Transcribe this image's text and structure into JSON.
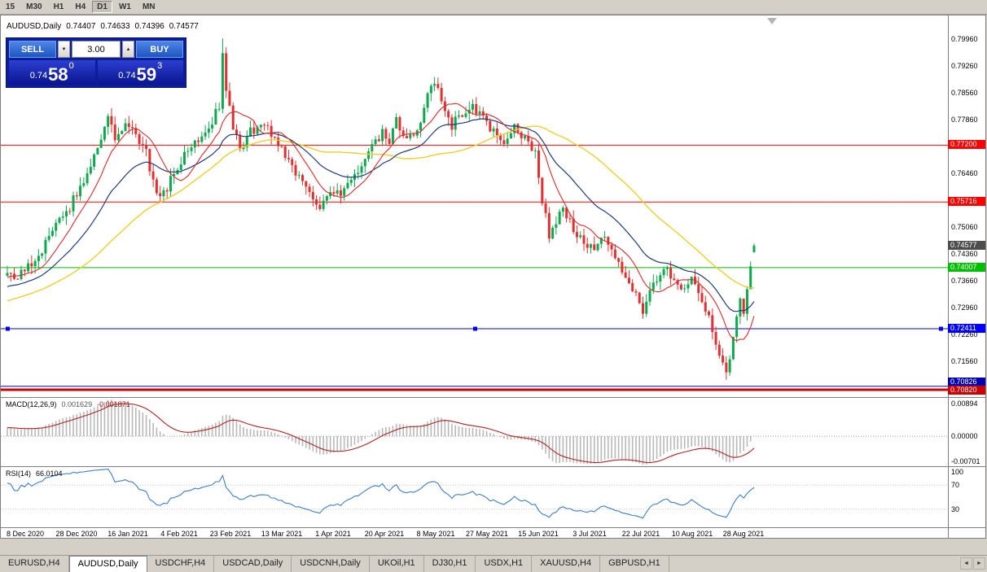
{
  "toolbar": {
    "timeframes": [
      "15",
      "M30",
      "H1",
      "H4",
      "D1",
      "W1",
      "MN"
    ],
    "active_timeframe": "D1"
  },
  "chart": {
    "header": {
      "symbol": "AUDUSD,Daily",
      "open": "0.74407",
      "high": "0.74633",
      "low": "0.74396",
      "close": "0.74577"
    },
    "trade_panel": {
      "sell_label": "SELL",
      "buy_label": "BUY",
      "volume": "3.00",
      "down_icon": "▼",
      "up_icon": "▲",
      "sell_price": {
        "big": "0.74",
        "pips": "58",
        "sup": "0"
      },
      "buy_price": {
        "big": "0.74",
        "pips": "59",
        "sup": "3"
      }
    }
  },
  "chart_data": {
    "type": "candlestick",
    "symbol": "AUDUSD",
    "timeframe": "Daily",
    "last_candle": {
      "open": 0.74407,
      "high": 0.74633,
      "low": 0.74396,
      "close": 0.74577
    },
    "ylim": [
      0.7063,
      0.8058
    ],
    "candle_count": 216,
    "price_axis_labels": [
      "0.79960",
      "0.79260",
      "0.78560",
      "0.77860",
      "0.77160",
      "0.76460",
      "0.75760",
      "0.75060",
      "0.74360",
      "0.73660",
      "0.72960",
      "0.72260",
      "0.71560",
      "0.70860"
    ],
    "current_price": {
      "value": 0.74577,
      "label": "0.74577",
      "color": "#4d4d4d"
    },
    "hlines": [
      {
        "value": 0.772,
        "label": "0.77200",
        "color": "#FF0000",
        "width": 1,
        "dy": 0,
        "badge_dy": 0
      },
      {
        "value": 0.75716,
        "label": "0.75716",
        "color": "#FF0000",
        "width": 1,
        "dy": 0,
        "badge_dy": 0
      },
      {
        "value": 0.74007,
        "label": "0.74007",
        "color": "#00BE00",
        "width": 1,
        "dy": 0,
        "badge_dy": 0
      },
      {
        "value": 0.72411,
        "label": "0.72411",
        "color": "#0000FF",
        "width": 1,
        "dy": 0,
        "badge_dy": 0,
        "handles": true
      },
      {
        "value": 0.70826,
        "label": "0.70826",
        "color": "#0000B4",
        "width": 1,
        "dy": -4,
        "badge_dy": -9
      },
      {
        "value": 0.7082,
        "label": "0.70820",
        "color": "#CC0000",
        "width": 3,
        "dy": 0,
        "badge_dy": 1
      }
    ],
    "colors": {
      "up": "#0EA84E",
      "down": "#E23030",
      "ma_fast": "#DD2A2A",
      "ma_mid": "#1F3B7A",
      "ma_slow": "#F0CE2A",
      "macd_hist": "#B8B8B8",
      "macd_signal": "#B22222",
      "rsi": "#3C7EC8"
    },
    "ma_periods": {
      "fast": 10,
      "mid": 26,
      "slow": 50
    },
    "price_path_anchors": [
      [
        0,
        0.7395
      ],
      [
        3,
        0.7372
      ],
      [
        6,
        0.7405
      ],
      [
        10,
        0.7448
      ],
      [
        14,
        0.7505
      ],
      [
        18,
        0.756
      ],
      [
        21,
        0.7608
      ],
      [
        24,
        0.7672
      ],
      [
        27,
        0.7742
      ],
      [
        29,
        0.779
      ],
      [
        31,
        0.7735
      ],
      [
        34,
        0.7772
      ],
      [
        37,
        0.7742
      ],
      [
        40,
        0.7702
      ],
      [
        43,
        0.7582
      ],
      [
        46,
        0.7612
      ],
      [
        50,
        0.7678
      ],
      [
        54,
        0.7728
      ],
      [
        58,
        0.7768
      ],
      [
        61,
        0.7822
      ],
      [
        62,
        0.7952
      ],
      [
        63,
        0.7872
      ],
      [
        65,
        0.7762
      ],
      [
        67,
        0.7708
      ],
      [
        70,
        0.7756
      ],
      [
        74,
        0.7772
      ],
      [
        78,
        0.7726
      ],
      [
        81,
        0.7682
      ],
      [
        84,
        0.7636
      ],
      [
        87,
        0.7596
      ],
      [
        90,
        0.7564
      ],
      [
        93,
        0.7604
      ],
      [
        96,
        0.7586
      ],
      [
        99,
        0.7626
      ],
      [
        102,
        0.7666
      ],
      [
        105,
        0.7712
      ],
      [
        108,
        0.7752
      ],
      [
        110,
        0.7722
      ],
      [
        112,
        0.7782
      ],
      [
        115,
        0.7726
      ],
      [
        118,
        0.7762
      ],
      [
        121,
        0.7846
      ],
      [
        123,
        0.7882
      ],
      [
        125,
        0.7832
      ],
      [
        128,
        0.7772
      ],
      [
        131,
        0.7802
      ],
      [
        134,
        0.7824
      ],
      [
        137,
        0.7786
      ],
      [
        140,
        0.7752
      ],
      [
        143,
        0.7732
      ],
      [
        146,
        0.7762
      ],
      [
        149,
        0.7742
      ],
      [
        152,
        0.7696
      ],
      [
        154,
        0.758
      ],
      [
        156,
        0.7486
      ],
      [
        158,
        0.7516
      ],
      [
        160,
        0.7556
      ],
      [
        163,
        0.7502
      ],
      [
        166,
        0.7462
      ],
      [
        169,
        0.7442
      ],
      [
        171,
        0.7482
      ],
      [
        174,
        0.7442
      ],
      [
        177,
        0.7392
      ],
      [
        180,
        0.7348
      ],
      [
        183,
        0.7292
      ],
      [
        186,
        0.7352
      ],
      [
        189,
        0.7402
      ],
      [
        192,
        0.7372
      ],
      [
        195,
        0.7346
      ],
      [
        197,
        0.7382
      ],
      [
        199,
        0.7342
      ],
      [
        201,
        0.7292
      ],
      [
        203,
        0.7238
      ],
      [
        205,
        0.7162
      ],
      [
        207,
        0.7118
      ],
      [
        209,
        0.7225
      ],
      [
        211,
        0.7308
      ],
      [
        212,
        0.7292
      ],
      [
        213,
        0.7335
      ],
      [
        214,
        0.7408
      ],
      [
        215,
        0.74577
      ]
    ],
    "date_labels": [
      "8 Dec 2020",
      "28 Dec 2020",
      "16 Jan 2021",
      "4 Feb 2021",
      "23 Feb 2021",
      "13 Mar 2021",
      "1 Apr 2021",
      "20 Apr 2021",
      "8 May 2021",
      "27 May 2021",
      "15 Jun 2021",
      "3 Jul 2021",
      "22 Jul 2021",
      "10 Aug 2021",
      "28 Aug 2021"
    ],
    "macd": {
      "label": "MACD(12,26,9)",
      "value_main": "0.001629",
      "value_signal": "-0.001871",
      "axis_top": "0.00894",
      "axis_zero": "0.00000",
      "axis_bottom": "-0.00701",
      "params": [
        12,
        26,
        9
      ]
    },
    "rsi": {
      "label": "RSI(14)",
      "value": "66.0104",
      "axis_top": "100",
      "levels": [
        70,
        30
      ],
      "period": 14
    }
  },
  "tabs": {
    "items": [
      "EURUSD,H4",
      "AUDUSD,Daily",
      "USDCHF,H4",
      "USDCAD,Daily",
      "USDCNH,Daily",
      "UKOil,H1",
      "DJ30,H1",
      "USDX,H1",
      "XAUUSD,H4",
      "GBPUSD,H1"
    ],
    "active": "AUDUSD,Daily",
    "left_arrow": "◄",
    "right_arrow": "►"
  }
}
